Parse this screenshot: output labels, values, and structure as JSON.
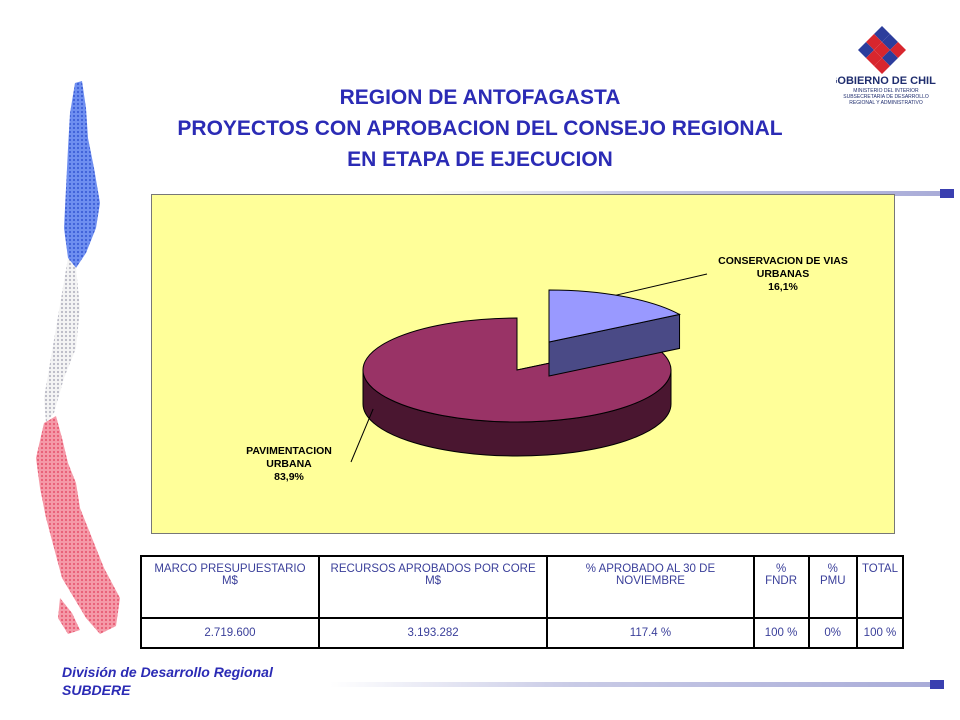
{
  "header": {
    "title_lines": [
      "REGION DE ANTOFAGASTA",
      "PROYECTOS CON APROBACION DEL CONSEJO REGIONAL",
      "EN ETAPA DE EJECUCION"
    ]
  },
  "logo": {
    "text": "GOBIERNO DE CHILE",
    "sub": [
      "MINISTERIO DEL INTERIOR",
      "SUBSECRETARIA DE DESARROLLO",
      "REGIONAL Y ADMINISTRATIVO"
    ]
  },
  "chart_data": {
    "type": "pie",
    "title": "",
    "legend": "none",
    "slices": [
      {
        "label_lines": [
          "CONSERVACION DE VIAS",
          "URBANAS"
        ],
        "value": 16.1,
        "value_text": "16,1%",
        "color": "#9999ff"
      },
      {
        "label_lines": [
          "PAVIMENTACION",
          "URBANA"
        ],
        "value": 83.9,
        "value_text": "83,9%",
        "color": "#993366"
      }
    ],
    "plot_background": "#ffff99"
  },
  "table": {
    "headers": [
      "MARCO PRESUPUESTARIO M$",
      "RECURSOS APROBADOS POR CORE M$",
      "% APROBADO AL 30 DE NOVIEMBRE",
      "% FNDR",
      "% PMU",
      "TOTAL"
    ],
    "rows": [
      [
        "2.719.600",
        "3.193.282",
        "117.4 %",
        "100 %",
        "0%",
        "100 %"
      ]
    ]
  },
  "footer": {
    "line1": "División de Desarrollo Regional",
    "line2": "SUBDERE"
  }
}
